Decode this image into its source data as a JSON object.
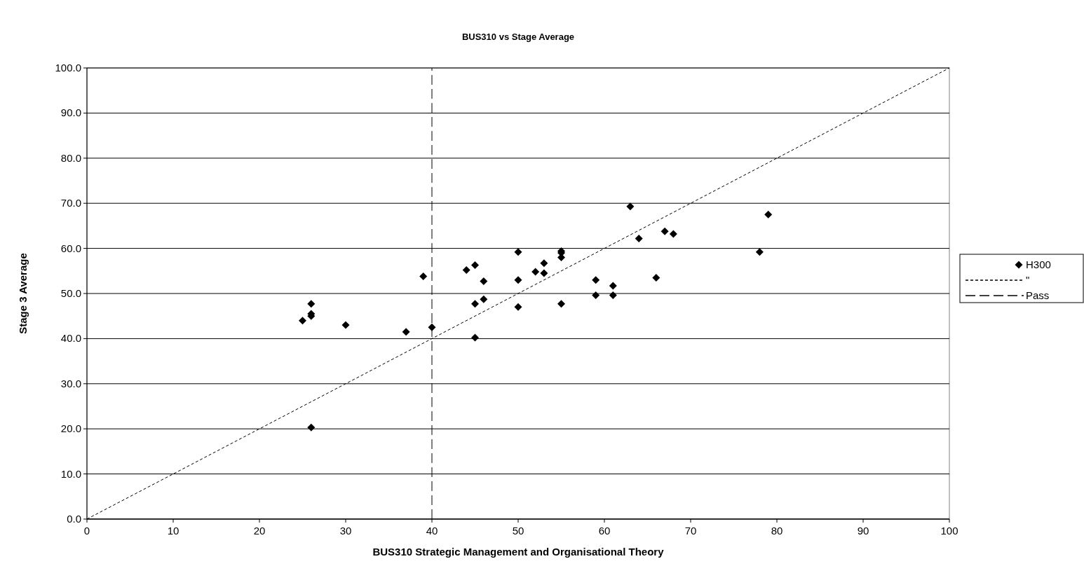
{
  "chart_data": {
    "type": "scatter",
    "title": "BUS310 vs Stage Average",
    "xlabel": "BUS310 Strategic Management and Organisational Theory",
    "ylabel": "Stage 3 Average",
    "xlim": [
      0,
      100
    ],
    "xticks": [
      0,
      10,
      20,
      30,
      40,
      50,
      60,
      70,
      80,
      90,
      100
    ],
    "ylim": [
      0,
      100
    ],
    "yticks": [
      {
        "value": 0,
        "label": "0.0"
      },
      {
        "value": 10,
        "label": "10.0"
      },
      {
        "value": 20,
        "label": "20.0"
      },
      {
        "value": 30,
        "label": "30.0"
      },
      {
        "value": 40,
        "label": "40.0"
      },
      {
        "value": 50,
        "label": "50.0"
      },
      {
        "value": 60,
        "label": "60.0"
      },
      {
        "value": 70,
        "label": "70.0"
      },
      {
        "value": 80,
        "label": "80.0"
      },
      {
        "value": 90,
        "label": "90.0"
      },
      {
        "value": 100,
        "label": "100.0"
      }
    ],
    "grid": "y",
    "legend": "right",
    "marker": "diamond",
    "series": [
      {
        "name": "H300",
        "color": "#000000",
        "x": [
          25,
          26,
          26,
          26,
          26,
          30,
          37,
          39,
          40,
          44,
          45,
          45,
          45,
          46,
          46,
          50,
          50,
          50,
          52,
          53,
          53,
          55,
          55,
          55,
          55,
          59,
          59,
          61,
          61,
          63,
          64,
          66,
          67,
          68,
          78,
          79
        ],
        "values": [
          44,
          47.7,
          45.5,
          45,
          20.3,
          43,
          41.5,
          53.8,
          42.5,
          55.2,
          56.3,
          47.7,
          40.2,
          52.7,
          48.7,
          59.2,
          53,
          47,
          54.8,
          56.7,
          54.5,
          59.4,
          59,
          58,
          47.7,
          53,
          49.6,
          51.7,
          49.6,
          69.3,
          62.2,
          53.5,
          63.8,
          63.2,
          59.2,
          67.5
        ]
      },
      {
        "name": "\"",
        "type": "line",
        "marker": "none",
        "color": "#000000",
        "line_style": "dotted",
        "x": [
          0,
          100
        ],
        "values": [
          0,
          100
        ]
      },
      {
        "name": "Pass",
        "type": "line",
        "marker": "none",
        "color": "#000000",
        "line_style": "dashed",
        "x": [
          40,
          40
        ],
        "values": [
          0,
          100
        ]
      }
    ]
  }
}
